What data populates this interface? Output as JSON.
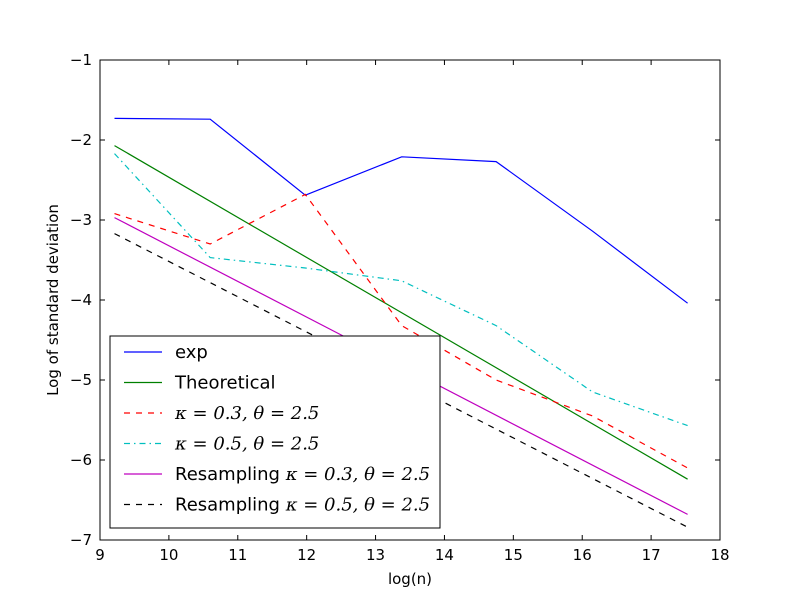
{
  "chart_data": {
    "type": "line",
    "title": "",
    "xlabel": "log(n)",
    "ylabel": "Log of standard deviation",
    "xlim": [
      9,
      18
    ],
    "ylim": [
      -7,
      -1
    ],
    "xticks": [
      9,
      10,
      11,
      12,
      13,
      14,
      15,
      16,
      17,
      18
    ],
    "yticks": [
      -7,
      -6,
      -5,
      -4,
      -3,
      -2,
      -1
    ],
    "ytick_labels": [
      "−7",
      "−6",
      "−5",
      "−4",
      "−3",
      "−2",
      "−1"
    ],
    "legend_position": "lower-left",
    "series": [
      {
        "name": "exp",
        "color": "#0000ff",
        "style": "solid",
        "x": [
          9.21,
          10.6,
          11.98,
          13.38,
          14.75,
          16.15,
          17.53
        ],
        "y": [
          -1.73,
          -1.74,
          -2.69,
          -2.21,
          -2.27,
          -3.14,
          -4.04
        ]
      },
      {
        "name": "Theoretical",
        "color": "#008000",
        "style": "solid",
        "x": [
          9.21,
          17.53
        ],
        "y": [
          -2.07,
          -6.24
        ]
      },
      {
        "name": "κ = 0.3, θ = 2.5",
        "color": "#ff0000",
        "style": "dashed",
        "x": [
          9.21,
          10.6,
          11.98,
          13.38,
          14.75,
          16.15,
          17.53
        ],
        "y": [
          -2.92,
          -3.3,
          -2.68,
          -4.32,
          -5.0,
          -5.45,
          -6.1
        ]
      },
      {
        "name": "κ = 0.5, θ = 2.5",
        "color": "#00bfbf",
        "style": "dashdot",
        "x": [
          9.21,
          10.6,
          11.98,
          13.38,
          14.75,
          16.15,
          17.53
        ],
        "y": [
          -2.17,
          -3.47,
          -3.6,
          -3.76,
          -4.32,
          -5.15,
          -5.57
        ]
      },
      {
        "name": "Resampling κ = 0.3, θ = 2.5",
        "color": "#bf00bf",
        "style": "solid",
        "x": [
          9.21,
          17.53
        ],
        "y": [
          -2.97,
          -6.68
        ]
      },
      {
        "name": "Resampling κ = 0.5, θ = 2.5",
        "color": "#000000",
        "style": "dashed",
        "x": [
          9.21,
          17.53
        ],
        "y": [
          -3.17,
          -6.84
        ]
      }
    ],
    "legend": [
      {
        "prefix": "exp",
        "math": ""
      },
      {
        "prefix": "Theoretical",
        "math": ""
      },
      {
        "prefix": "",
        "math": "κ = 0.3, θ = 2.5"
      },
      {
        "prefix": "",
        "math": "κ = 0.5, θ = 2.5"
      },
      {
        "prefix": "Resampling ",
        "math": "κ = 0.3, θ = 2.5"
      },
      {
        "prefix": "Resampling ",
        "math": "κ = 0.5, θ = 2.5"
      }
    ]
  }
}
